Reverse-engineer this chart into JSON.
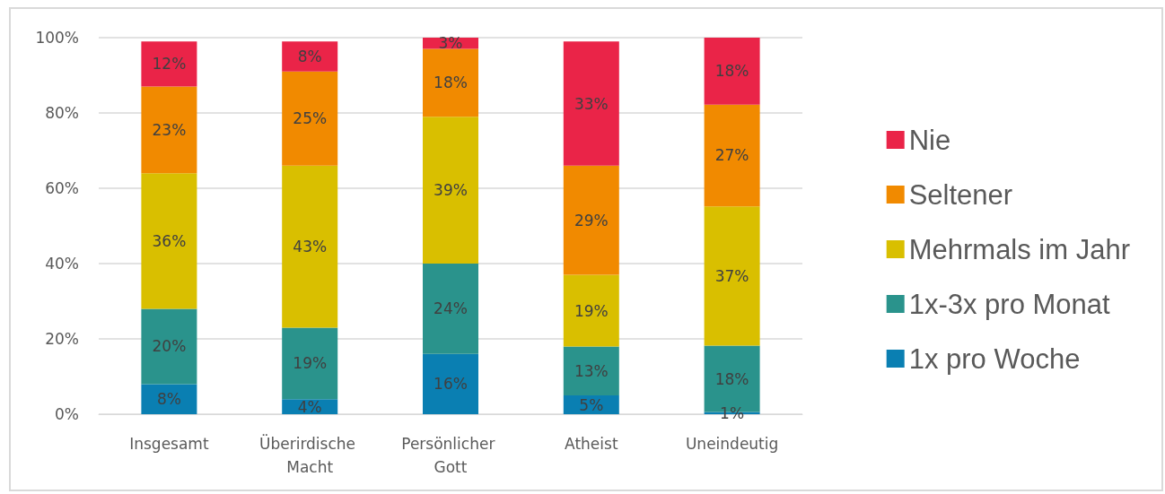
{
  "chart_data": {
    "type": "bar",
    "stacked": true,
    "categories": [
      "Insgesamt",
      "Überirdische Macht",
      "Persönlicher Gott",
      "Atheist",
      "Uneindeutig"
    ],
    "series": [
      {
        "name": "1x pro Woche",
        "color": "#0a7fb2",
        "values": [
          8,
          4,
          16,
          5,
          0.6
        ],
        "value_labels": [
          "8%",
          "4%",
          "16%",
          "5%",
          "1%"
        ]
      },
      {
        "name": "1x-3x pro Monat",
        "color": "#2a938c",
        "values": [
          20,
          19,
          24,
          13,
          17.6
        ],
        "value_labels": [
          "20%",
          "19%",
          "24%",
          "13%",
          "18%"
        ]
      },
      {
        "name": "Mehrmals im Jahr",
        "color": "#d9bf00",
        "values": [
          36,
          43,
          39,
          19,
          37
        ],
        "value_labels": [
          "36%",
          "43%",
          "39%",
          "19%",
          "37%"
        ]
      },
      {
        "name": "Seltener",
        "color": "#f18a00",
        "values": [
          23,
          25,
          18,
          29,
          27
        ],
        "value_labels": [
          "23%",
          "25%",
          "18%",
          "29%",
          "27%"
        ]
      },
      {
        "name": "Nie",
        "color": "#ea2448",
        "values": [
          12,
          8,
          3,
          33,
          17.8
        ],
        "value_labels": [
          "12%",
          "8%",
          "3%",
          "33%",
          "18%"
        ]
      }
    ],
    "ylim": [
      0,
      100
    ],
    "yticks": [
      {
        "value": 0,
        "label": "0%"
      },
      {
        "value": 20,
        "label": "20%"
      },
      {
        "value": 40,
        "label": "40%"
      },
      {
        "value": 60,
        "label": "60%"
      },
      {
        "value": 80,
        "label": "80%"
      },
      {
        "value": 100,
        "label": "100%"
      }
    ],
    "grid": "y",
    "legend": "right"
  }
}
